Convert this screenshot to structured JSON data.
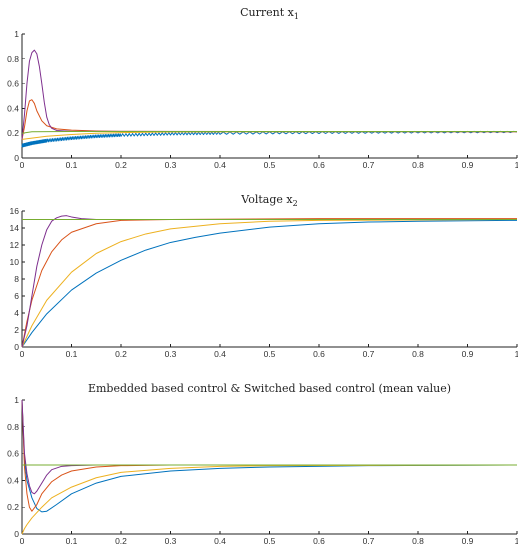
{
  "chart_data": [
    {
      "type": "line",
      "title": "Current x",
      "title_subscript": "1",
      "xlim": [
        0,
        1
      ],
      "ylim": [
        0,
        1
      ],
      "x_ticks": [
        "0",
        "0.1",
        "0.2",
        "0.3",
        "0.4",
        "0.5",
        "0.6",
        "0.7",
        "0.8",
        "0.9",
        "1"
      ],
      "y_ticks": [
        "0",
        "0.2",
        "0.4",
        "0.6",
        "0.8",
        "1"
      ],
      "series": [
        {
          "color": "#0072bd",
          "noisy": true,
          "points": [
            [
              0,
              0.1
            ],
            [
              0.02,
              0.12
            ],
            [
              0.05,
              0.14
            ],
            [
              0.1,
              0.16
            ],
            [
              0.15,
              0.175
            ],
            [
              0.2,
              0.185
            ],
            [
              0.3,
              0.195
            ],
            [
              0.4,
              0.2
            ],
            [
              0.6,
              0.205
            ],
            [
              0.8,
              0.208
            ],
            [
              1.0,
              0.21
            ]
          ]
        },
        {
          "color": "#d95319",
          "points": [
            [
              0,
              0.15
            ],
            [
              0.005,
              0.25
            ],
            [
              0.01,
              0.38
            ],
            [
              0.015,
              0.46
            ],
            [
              0.02,
              0.47
            ],
            [
              0.025,
              0.44
            ],
            [
              0.03,
              0.38
            ],
            [
              0.04,
              0.3
            ],
            [
              0.05,
              0.26
            ],
            [
              0.07,
              0.235
            ],
            [
              0.1,
              0.225
            ],
            [
              0.15,
              0.218
            ],
            [
              0.2,
              0.215
            ],
            [
              0.4,
              0.213
            ],
            [
              1.0,
              0.212
            ]
          ]
        },
        {
          "color": "#edb120",
          "points": [
            [
              0,
              0.15
            ],
            [
              0.02,
              0.16
            ],
            [
              0.05,
              0.175
            ],
            [
              0.1,
              0.19
            ],
            [
              0.15,
              0.2
            ],
            [
              0.2,
              0.205
            ],
            [
              0.3,
              0.21
            ],
            [
              0.5,
              0.212
            ],
            [
              1.0,
              0.213
            ]
          ]
        },
        {
          "color": "#7e2f8e",
          "points": [
            [
              0,
              0.15
            ],
            [
              0.005,
              0.35
            ],
            [
              0.01,
              0.6
            ],
            [
              0.015,
              0.78
            ],
            [
              0.02,
              0.85
            ],
            [
              0.025,
              0.87
            ],
            [
              0.03,
              0.84
            ],
            [
              0.035,
              0.74
            ],
            [
              0.04,
              0.6
            ],
            [
              0.045,
              0.45
            ],
            [
              0.05,
              0.33
            ],
            [
              0.055,
              0.27
            ],
            [
              0.06,
              0.24
            ],
            [
              0.07,
              0.222
            ],
            [
              0.1,
              0.215
            ],
            [
              1.0,
              0.213
            ]
          ]
        },
        {
          "color": "#77ac30",
          "points": [
            [
              0,
              0.2
            ],
            [
              0.02,
              0.212
            ],
            [
              0.1,
              0.214
            ],
            [
              1.0,
              0.214
            ]
          ]
        }
      ]
    },
    {
      "type": "line",
      "title": "Voltage x",
      "title_subscript": "2",
      "xlim": [
        0,
        1
      ],
      "ylim": [
        0,
        16
      ],
      "x_ticks": [
        "0",
        "0.1",
        "0.2",
        "0.3",
        "0.4",
        "0.5",
        "0.6",
        "0.7",
        "0.8",
        "0.9",
        "1"
      ],
      "y_ticks": [
        "0",
        "2",
        "4",
        "6",
        "8",
        "10",
        "12",
        "14",
        "16"
      ],
      "series": [
        {
          "color": "#0072bd",
          "points": [
            [
              0,
              0
            ],
            [
              0.02,
              1.7
            ],
            [
              0.05,
              3.9
            ],
            [
              0.1,
              6.7
            ],
            [
              0.15,
              8.7
            ],
            [
              0.2,
              10.2
            ],
            [
              0.25,
              11.4
            ],
            [
              0.3,
              12.3
            ],
            [
              0.35,
              12.9
            ],
            [
              0.4,
              13.4
            ],
            [
              0.5,
              14.1
            ],
            [
              0.6,
              14.5
            ],
            [
              0.7,
              14.7
            ],
            [
              0.8,
              14.8
            ],
            [
              1.0,
              14.9
            ]
          ]
        },
        {
          "color": "#edb120",
          "points": [
            [
              0,
              0
            ],
            [
              0.02,
              2.5
            ],
            [
              0.05,
              5.5
            ],
            [
              0.1,
              8.8
            ],
            [
              0.15,
              11.0
            ],
            [
              0.2,
              12.4
            ],
            [
              0.25,
              13.3
            ],
            [
              0.3,
              13.9
            ],
            [
              0.4,
              14.5
            ],
            [
              0.5,
              14.8
            ],
            [
              0.6,
              14.9
            ],
            [
              1.0,
              15.0
            ]
          ]
        },
        {
          "color": "#d95319",
          "points": [
            [
              0,
              0
            ],
            [
              0.01,
              3.0
            ],
            [
              0.02,
              5.5
            ],
            [
              0.04,
              9.0
            ],
            [
              0.06,
              11.2
            ],
            [
              0.08,
              12.6
            ],
            [
              0.1,
              13.5
            ],
            [
              0.15,
              14.5
            ],
            [
              0.2,
              14.9
            ],
            [
              0.3,
              15.0
            ],
            [
              0.6,
              15.1
            ],
            [
              1.0,
              15.1
            ]
          ]
        },
        {
          "color": "#7e2f8e",
          "points": [
            [
              0,
              0
            ],
            [
              0.01,
              2.5
            ],
            [
              0.02,
              6.0
            ],
            [
              0.03,
              9.5
            ],
            [
              0.04,
              12.0
            ],
            [
              0.05,
              13.8
            ],
            [
              0.06,
              14.8
            ],
            [
              0.07,
              15.2
            ],
            [
              0.08,
              15.4
            ],
            [
              0.09,
              15.45
            ],
            [
              0.1,
              15.3
            ],
            [
              0.12,
              15.1
            ],
            [
              0.15,
              15.0
            ],
            [
              1.0,
              15.0
            ]
          ]
        },
        {
          "color": "#77ac30",
          "points": [
            [
              0,
              15.0
            ],
            [
              1.0,
              15.0
            ]
          ]
        }
      ]
    },
    {
      "type": "line",
      "title": "Embedded based control & Switched based control (mean value)",
      "xlim": [
        0,
        1
      ],
      "ylim": [
        0,
        1
      ],
      "x_ticks": [
        "0",
        "0.1",
        "0.2",
        "0.3",
        "0.4",
        "0.5",
        "0.6",
        "0.7",
        "0.8",
        "0.9",
        "1"
      ],
      "y_ticks": [
        "0",
        "0.2",
        "0.4",
        "0.6",
        "0.8",
        "1"
      ],
      "series": [
        {
          "color": "#0072bd",
          "points": [
            [
              0,
              1.0
            ],
            [
              0.005,
              0.55
            ],
            [
              0.01,
              0.4
            ],
            [
              0.02,
              0.27
            ],
            [
              0.03,
              0.19
            ],
            [
              0.04,
              0.165
            ],
            [
              0.05,
              0.17
            ],
            [
              0.07,
              0.22
            ],
            [
              0.1,
              0.3
            ],
            [
              0.15,
              0.38
            ],
            [
              0.2,
              0.43
            ],
            [
              0.3,
              0.47
            ],
            [
              0.4,
              0.49
            ],
            [
              0.5,
              0.5
            ],
            [
              0.7,
              0.51
            ],
            [
              1.0,
              0.515
            ]
          ]
        },
        {
          "color": "#edb120",
          "points": [
            [
              0,
              0.0
            ],
            [
              0.005,
              0.04
            ],
            [
              0.01,
              0.07
            ],
            [
              0.02,
              0.12
            ],
            [
              0.04,
              0.2
            ],
            [
              0.06,
              0.27
            ],
            [
              0.1,
              0.35
            ],
            [
              0.15,
              0.42
            ],
            [
              0.2,
              0.46
            ],
            [
              0.3,
              0.49
            ],
            [
              0.4,
              0.505
            ],
            [
              0.5,
              0.51
            ],
            [
              1.0,
              0.515
            ]
          ]
        },
        {
          "color": "#d95319",
          "points": [
            [
              0,
              1.0
            ],
            [
              0.005,
              0.5
            ],
            [
              0.01,
              0.3
            ],
            [
              0.015,
              0.2
            ],
            [
              0.02,
              0.17
            ],
            [
              0.03,
              0.22
            ],
            [
              0.04,
              0.3
            ],
            [
              0.06,
              0.39
            ],
            [
              0.08,
              0.44
            ],
            [
              0.1,
              0.47
            ],
            [
              0.15,
              0.5
            ],
            [
              0.2,
              0.51
            ],
            [
              0.3,
              0.515
            ],
            [
              1.0,
              0.515
            ]
          ]
        },
        {
          "color": "#7e2f8e",
          "points": [
            [
              0,
              1.0
            ],
            [
              0.005,
              0.6
            ],
            [
              0.01,
              0.45
            ],
            [
              0.015,
              0.36
            ],
            [
              0.02,
              0.31
            ],
            [
              0.025,
              0.3
            ],
            [
              0.03,
              0.32
            ],
            [
              0.04,
              0.38
            ],
            [
              0.05,
              0.44
            ],
            [
              0.06,
              0.48
            ],
            [
              0.08,
              0.505
            ],
            [
              0.1,
              0.51
            ],
            [
              0.15,
              0.515
            ],
            [
              1.0,
              0.515
            ]
          ]
        },
        {
          "color": "#77ac30",
          "points": [
            [
              0,
              0.515
            ],
            [
              1.0,
              0.515
            ]
          ]
        }
      ]
    }
  ]
}
